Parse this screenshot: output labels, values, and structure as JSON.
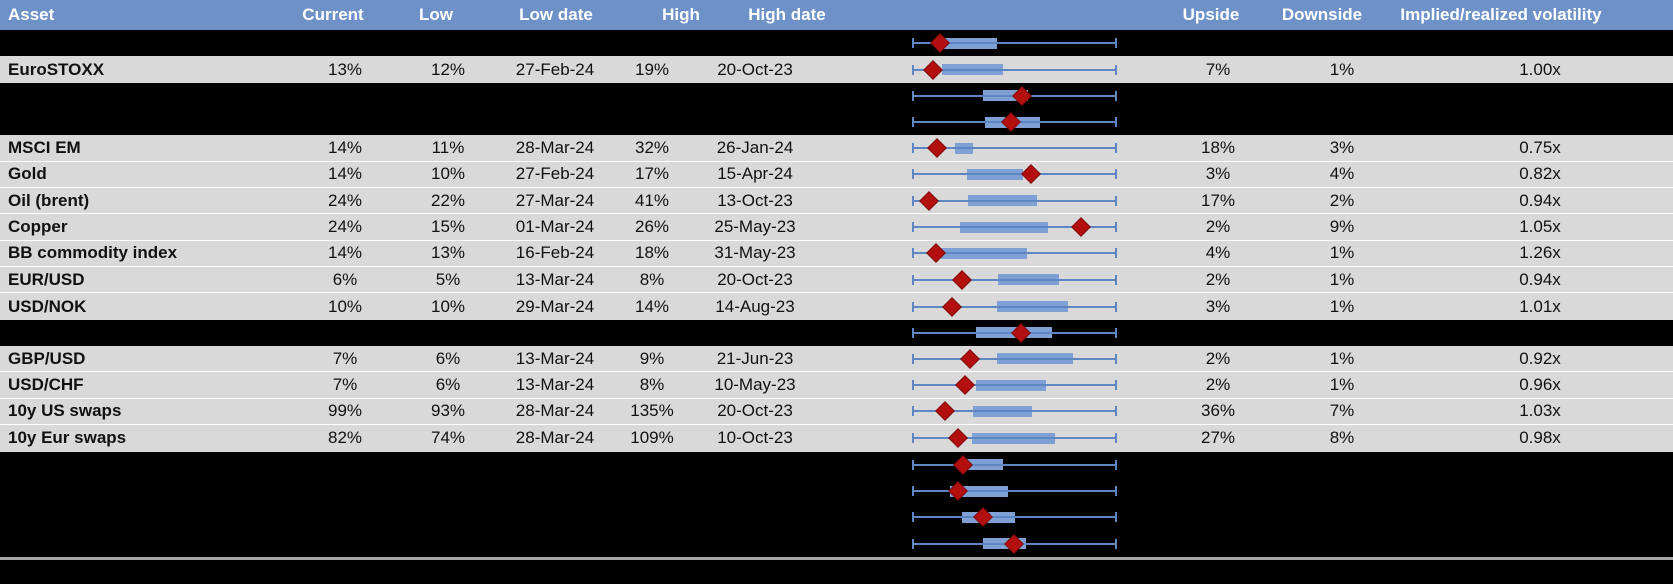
{
  "colors": {
    "header_bg": "#6E92C8",
    "header_text": "#FFFFFF",
    "row_gray": "#D9D9D9",
    "row_black": "#000000",
    "gridline": "#FFFFFF",
    "text": "#111111",
    "whisker": "#5E86C3",
    "box_fill": "#7EA0D4",
    "diamond": "#B40F0F",
    "separator": "#A6A6A6"
  },
  "header": {
    "columns": {
      "asset": "Asset",
      "current": "Current",
      "low": "Low",
      "low_date": "Low date",
      "high": "High",
      "high_date": "High date",
      "upside": "Upside",
      "downside": "Downside",
      "vol": "Implied/realized volatility"
    }
  },
  "rows": [
    {
      "type": "hidden",
      "plot": {
        "box_lo": 0.152,
        "box_hi": 0.414,
        "diamond": 0.137
      }
    },
    {
      "type": "data",
      "asset": "EuroSTOXX",
      "current": "13%",
      "low": "12%",
      "low_date": "27-Feb-24",
      "high": "19%",
      "high_date": "20-Oct-23",
      "upside": "7%",
      "downside": "1%",
      "vol": "1.00x",
      "plot": {
        "box_lo": 0.146,
        "box_hi": 0.444,
        "diamond": 0.102
      }
    },
    {
      "type": "hidden",
      "plot": {
        "box_lo": 0.346,
        "box_hi": 0.566,
        "diamond": 0.537
      }
    },
    {
      "type": "hidden",
      "plot": {
        "box_lo": 0.356,
        "box_hi": 0.624,
        "diamond": 0.483
      }
    },
    {
      "type": "data",
      "asset": "MSCI EM",
      "current": "14%",
      "low": "11%",
      "low_date": "28-Mar-24",
      "high": "32%",
      "high_date": "26-Jan-24",
      "upside": "18%",
      "downside": "3%",
      "vol": "0.75x",
      "plot": {
        "box_lo": 0.21,
        "box_hi": 0.298,
        "diamond": 0.122
      }
    },
    {
      "type": "data",
      "asset": "Gold",
      "current": "14%",
      "low": "10%",
      "low_date": "27-Feb-24",
      "high": "17%",
      "high_date": "15-Apr-24",
      "upside": "3%",
      "downside": "4%",
      "vol": "0.82x",
      "plot": {
        "box_lo": 0.268,
        "box_hi": 0.541,
        "diamond": 0.58
      }
    },
    {
      "type": "data",
      "asset": "Oil (brent)",
      "current": "24%",
      "low": "22%",
      "low_date": "27-Mar-24",
      "high": "41%",
      "high_date": "13-Oct-23",
      "upside": "17%",
      "downside": "2%",
      "vol": "0.94x",
      "plot": {
        "box_lo": 0.273,
        "box_hi": 0.61,
        "diamond": 0.083
      }
    },
    {
      "type": "data",
      "asset": "Copper",
      "current": "24%",
      "low": "15%",
      "low_date": "01-Mar-24",
      "high": "26%",
      "high_date": "25-May-23",
      "upside": "2%",
      "downside": "9%",
      "vol": "1.05x",
      "plot": {
        "box_lo": 0.234,
        "box_hi": 0.663,
        "diamond": 0.824
      }
    },
    {
      "type": "data",
      "asset": "BB commodity index",
      "current": "14%",
      "low": "13%",
      "low_date": "16-Feb-24",
      "high": "18%",
      "high_date": "31-May-23",
      "upside": "4%",
      "downside": "1%",
      "vol": "1.26x",
      "plot": {
        "box_lo": 0.141,
        "box_hi": 0.561,
        "diamond": 0.117
      }
    },
    {
      "type": "data",
      "asset": "EUR/USD",
      "current": "6%",
      "low": "5%",
      "low_date": "13-Mar-24",
      "high": "8%",
      "high_date": "20-Oct-23",
      "upside": "2%",
      "downside": "1%",
      "vol": "0.94x",
      "plot": {
        "box_lo": 0.42,
        "box_hi": 0.717,
        "diamond": 0.244
      }
    },
    {
      "type": "data",
      "asset": "USD/NOK",
      "current": "10%",
      "low": "10%",
      "low_date": "29-Mar-24",
      "high": "14%",
      "high_date": "14-Aug-23",
      "upside": "3%",
      "downside": "1%",
      "vol": "1.01x",
      "plot": {
        "box_lo": 0.415,
        "box_hi": 0.761,
        "diamond": 0.195
      }
    },
    {
      "type": "hidden",
      "plot": {
        "box_lo": 0.312,
        "box_hi": 0.683,
        "diamond": 0.532
      }
    },
    {
      "type": "data",
      "asset": "GBP/USD",
      "current": "7%",
      "low": "6%",
      "low_date": "13-Mar-24",
      "high": "9%",
      "high_date": "21-Jun-23",
      "upside": "2%",
      "downside": "1%",
      "vol": "0.92x",
      "plot": {
        "box_lo": 0.415,
        "box_hi": 0.785,
        "diamond": 0.283
      }
    },
    {
      "type": "data",
      "asset": "USD/CHF",
      "current": "7%",
      "low": "6%",
      "low_date": "13-Mar-24",
      "high": "8%",
      "high_date": "10-May-23",
      "upside": "2%",
      "downside": "1%",
      "vol": "0.96x",
      "plot": {
        "box_lo": 0.312,
        "box_hi": 0.654,
        "diamond": 0.259
      }
    },
    {
      "type": "data",
      "asset": "10y US swaps",
      "current": "99%",
      "low": "93%",
      "low_date": "28-Mar-24",
      "high": "135%",
      "high_date": "20-Oct-23",
      "upside": "36%",
      "downside": "7%",
      "vol": "1.03x",
      "plot": {
        "box_lo": 0.298,
        "box_hi": 0.585,
        "diamond": 0.161
      }
    },
    {
      "type": "data",
      "asset": "10y Eur swaps",
      "current": "82%",
      "low": "74%",
      "low_date": "28-Mar-24",
      "high": "109%",
      "high_date": "10-Oct-23",
      "upside": "27%",
      "downside": "8%",
      "vol": "0.98x",
      "plot": {
        "box_lo": 0.293,
        "box_hi": 0.698,
        "diamond": 0.224
      }
    },
    {
      "type": "hidden",
      "plot": {
        "box_lo": 0.229,
        "box_hi": 0.444,
        "diamond": 0.249
      }
    },
    {
      "type": "hidden",
      "plot": {
        "box_lo": 0.185,
        "box_hi": 0.468,
        "diamond": 0.224
      }
    },
    {
      "type": "hidden",
      "plot": {
        "box_lo": 0.244,
        "box_hi": 0.502,
        "diamond": 0.346
      }
    },
    {
      "type": "hidden",
      "plot": {
        "box_lo": 0.346,
        "box_hi": 0.556,
        "diamond": 0.498
      }
    }
  ]
}
